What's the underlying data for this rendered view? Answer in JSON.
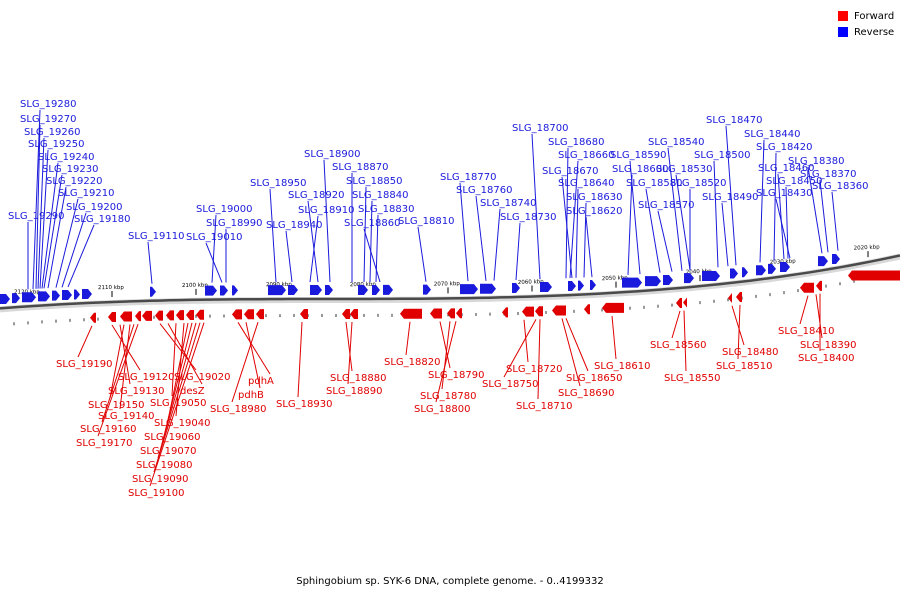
{
  "legend": {
    "forward_label": "Forward",
    "reverse_label": "Reverse",
    "forward_color": "#ff0000",
    "reverse_color": "#0000ff"
  },
  "caption": "Sphingobium sp. SYK-6 DNA, complete genome. - 0..4199332",
  "colors": {
    "forward": "#e00000",
    "reverse": "#1a1adc",
    "axis_dark": "#4a4a4a",
    "axis_light": "#d8d8d8"
  },
  "ticks": [
    "2120 kbp",
    "2110 kbp",
    "2100 kbp",
    "2090 kbp",
    "2080 kbp",
    "2070 kbp",
    "2060 kbp",
    "2050 kbp",
    "2040 kbp",
    "2030 kbp",
    "2020 kbp"
  ],
  "reverse_labels": [
    "SLG_19280",
    "SLG_19270",
    "SLG_19260",
    "SLG_19250",
    "SLG_19240",
    "SLG_19230",
    "SLG_19220",
    "SLG_19210",
    "SLG_19200",
    "SLG_19180",
    "SLG_19290",
    "SLG_19110",
    "SLG_19000",
    "SLG_18990",
    "SLG_19010",
    "SLG_18950",
    "SLG_18940",
    "SLG_18900",
    "SLG_18920",
    "SLG_18910",
    "SLG_18870",
    "SLG_18850",
    "SLG_18840",
    "SLG_18830",
    "SLG_18860",
    "SLG_18810",
    "SLG_18770",
    "SLG_18760",
    "SLG_18740",
    "SLG_18730",
    "SLG_18700",
    "SLG_18680",
    "SLG_18660",
    "SLG_18670",
    "SLG_18640",
    "SLG_18630",
    "SLG_18620",
    "SLG_18600",
    "SLG_18590",
    "SLG_18580",
    "SLG_18570",
    "SLG_18540",
    "SLG_18530",
    "SLG_18520",
    "SLG_18500",
    "SLG_18490",
    "SLG_18470",
    "SLG_18440",
    "SLG_18420",
    "SLG_18460",
    "SLG_18450",
    "SLG_18430",
    "SLG_18380",
    "SLG_18370",
    "SLG_18360"
  ],
  "forward_labels": [
    "SLG_19190",
    "SLG_19120",
    "SLG_19130",
    "SLG_19150",
    "SLG_19140",
    "SLG_19160",
    "SLG_19170",
    "SLG_19020",
    "desZ",
    "SLG_19050",
    "SLG_19040",
    "SLG_19060",
    "SLG_19070",
    "SLG_19080",
    "SLG_19090",
    "SLG_19100",
    "pdhA",
    "pdhB",
    "SLG_18980",
    "SLG_18930",
    "SLG_18880",
    "SLG_18890",
    "SLG_18820",
    "SLG_18790",
    "SLG_18780",
    "SLG_18800",
    "SLG_18720",
    "SLG_18750",
    "SLG_18710",
    "SLG_18690",
    "SLG_18650",
    "SLG_18610",
    "SLG_18560",
    "SLG_18550",
    "SLG_18480",
    "SLG_18510",
    "SLG_18410",
    "SLG_18390",
    "SLG_18400"
  ]
}
